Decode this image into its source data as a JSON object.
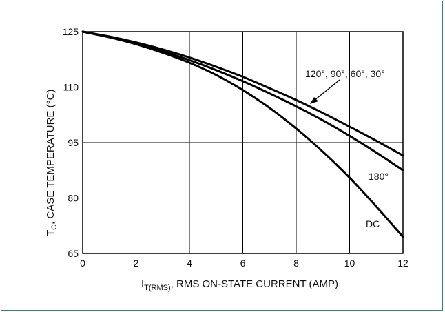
{
  "chart_data": {
    "type": "line",
    "xlabel_main": "I",
    "xlabel_sub": "T(RMS)",
    "xlabel_rest": ", RMS ON-STATE CURRENT (AMP)",
    "ylabel_main": "T",
    "ylabel_sub": "C",
    "ylabel_rest": ", CASE TEMPERATURE (°C)",
    "xlim": [
      0,
      12
    ],
    "ylim": [
      65,
      125
    ],
    "xticks": [
      0,
      2,
      4,
      6,
      8,
      10,
      12
    ],
    "yticks": [
      65,
      80,
      95,
      110,
      125
    ],
    "grid": true,
    "series": [
      {
        "name": "120°, 90°, 60°, 30°",
        "x": [
          0,
          1,
          2,
          3,
          4,
          5,
          6,
          7,
          8,
          9,
          10,
          11,
          12
        ],
        "y": [
          125,
          123.7,
          122.1,
          120.2,
          118.0,
          115.5,
          112.8,
          109.7,
          106.5,
          103.0,
          99.3,
          95.5,
          91.5
        ]
      },
      {
        "name": "180°",
        "x": [
          0,
          1,
          2,
          3,
          4,
          5,
          6,
          7,
          8,
          9,
          10,
          11,
          12
        ],
        "y": [
          125,
          123.5,
          121.8,
          119.7,
          117.3,
          114.6,
          111.6,
          108.3,
          104.8,
          101.0,
          96.8,
          92.3,
          87.5
        ]
      },
      {
        "name": "DC",
        "x": [
          0,
          1,
          2,
          3,
          4,
          5,
          6,
          7,
          8,
          9,
          10,
          11,
          12
        ],
        "y": [
          125,
          123.5,
          121.6,
          119.3,
          116.6,
          113.3,
          109.2,
          104.4,
          98.8,
          92.5,
          85.5,
          77.7,
          69.5
        ]
      }
    ],
    "annotations": {
      "multi": "120°, 90°, 60°, 30°",
      "deg180": "180°",
      "dc": "DC"
    }
  }
}
